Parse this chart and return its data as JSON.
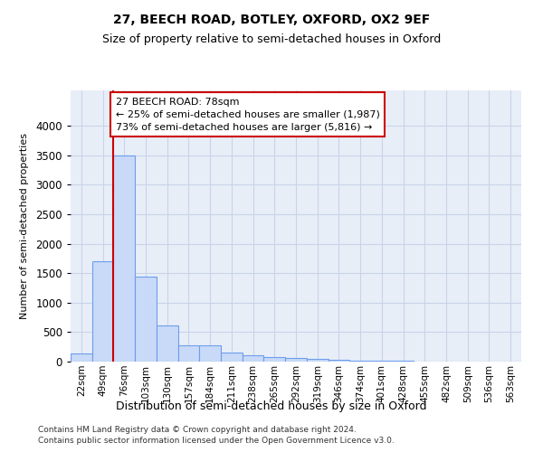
{
  "title1": "27, BEECH ROAD, BOTLEY, OXFORD, OX2 9EF",
  "title2": "Size of property relative to semi-detached houses in Oxford",
  "xlabel": "Distribution of semi-detached houses by size in Oxford",
  "ylabel": "Number of semi-detached properties",
  "categories": [
    "22sqm",
    "49sqm",
    "76sqm",
    "103sqm",
    "130sqm",
    "157sqm",
    "184sqm",
    "211sqm",
    "238sqm",
    "265sqm",
    "292sqm",
    "319sqm",
    "346sqm",
    "374sqm",
    "401sqm",
    "428sqm",
    "455sqm",
    "482sqm",
    "509sqm",
    "536sqm",
    "563sqm"
  ],
  "values": [
    140,
    1700,
    3500,
    1440,
    620,
    280,
    280,
    160,
    100,
    80,
    55,
    45,
    30,
    15,
    10,
    8,
    6,
    5,
    4,
    3,
    3
  ],
  "bar_color": "#c9daf8",
  "bar_edge_color": "#6d9eeb",
  "vline_color": "#cc0000",
  "annotation_line1": "27 BEECH ROAD: 78sqm",
  "annotation_line2": "← 25% of semi-detached houses are smaller (1,987)",
  "annotation_line3": "73% of semi-detached houses are larger (5,816) →",
  "annotation_box_color": "#ffffff",
  "annotation_box_edge": "#cc0000",
  "ylim": [
    0,
    4600
  ],
  "yticks": [
    0,
    500,
    1000,
    1500,
    2000,
    2500,
    3000,
    3500,
    4000
  ],
  "footer1": "Contains HM Land Registry data © Crown copyright and database right 2024.",
  "footer2": "Contains public sector information licensed under the Open Government Licence v3.0.",
  "bg_color": "#ffffff",
  "plot_bg_color": "#e8eef8",
  "grid_color": "#c8d4e8"
}
